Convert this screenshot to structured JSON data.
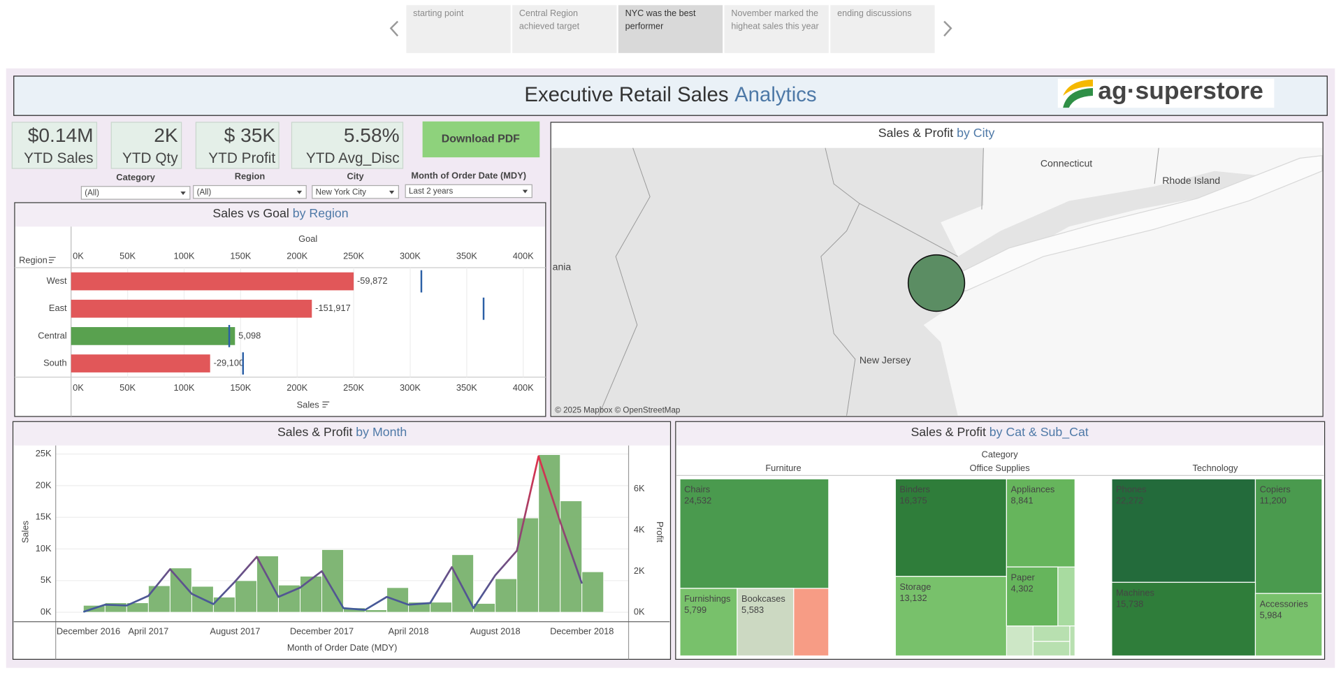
{
  "story": {
    "points": [
      "starting point",
      "Central Region achieved target",
      "NYC was the best performer",
      "November marked the higheat sales this year",
      "ending discussions"
    ],
    "selected": 2
  },
  "header": {
    "title": "Executive Retail Sales",
    "title_accent": "Analytics",
    "logo": "ag·superstore"
  },
  "kpis": [
    {
      "value": "$0.14M",
      "label": "YTD Sales"
    },
    {
      "value": "2K",
      "label": "YTD Qty"
    },
    {
      "value": "$ 35K",
      "label": "YTD Profit"
    },
    {
      "value": "5.58%",
      "label": "YTD Avg_Disc"
    }
  ],
  "button": "Download PDF",
  "filters": [
    {
      "label": "Category",
      "value": "(All)"
    },
    {
      "label": "Region",
      "value": "(All)"
    },
    {
      "label": "City",
      "value": "New York City"
    },
    {
      "label": "Month of Order Date (MDY)",
      "value": "Last 2 years"
    }
  ],
  "map": {
    "title": "Sales & Profit",
    "title_accent": "by City",
    "labels": [
      "Connecticut",
      "Rhode Island",
      "ania",
      "New Jersey"
    ],
    "attribution": "© 2025 Mapbox © OpenStreetMap"
  },
  "chart_data": [
    {
      "type": "hbar",
      "title": "Sales vs Goal",
      "title_accent": "by Region",
      "y_label": "Region",
      "x_label": "Sales",
      "x2_label": "Goal",
      "categories": [
        "West",
        "East",
        "Central",
        "South"
      ],
      "values": [
        250000,
        213000,
        145000,
        123000
      ],
      "colors": [
        "#e15759",
        "#e15759",
        "#59a14f",
        "#e15759"
      ],
      "goal": {
        "values": [
          309872,
          364917,
          139902,
          152100
        ],
        "color": "#2b5fa6"
      },
      "variance": {
        "values": [
          -59872,
          -151917,
          5098,
          -29100
        ],
        "value_labels": [
          "-59,872",
          "-151,917",
          "5,098",
          "-29,100"
        ]
      },
      "xlim": [
        0,
        410000
      ],
      "xticks": [
        {
          "value": 0,
          "label": "0K"
        },
        {
          "value": 50000,
          "label": "50K"
        },
        {
          "value": 100000,
          "label": "100K"
        },
        {
          "value": 150000,
          "label": "150K"
        },
        {
          "value": 200000,
          "label": "200K"
        },
        {
          "value": 250000,
          "label": "250K"
        },
        {
          "value": 300000,
          "label": "300K"
        },
        {
          "value": 350000,
          "label": "350K"
        },
        {
          "value": 400000,
          "label": "400K"
        }
      ],
      "grid": true
    },
    {
      "type": "combo",
      "title": "Sales & Profit",
      "title_accent": "by Month",
      "x_label": "Month of Order Date (MDY)",
      "y_label": "Sales",
      "y2_label": "Profit",
      "categories": [
        "December 2016",
        null,
        null,
        null,
        "April 2017",
        null,
        null,
        null,
        "August 2017",
        null,
        null,
        null,
        "December 2017",
        null,
        null,
        null,
        "April 2018",
        null,
        null,
        null,
        "August 2018",
        null,
        null,
        null,
        "December 2018"
      ],
      "series": [
        {
          "name": "Sales",
          "type": "bar",
          "color": "#7ab36e",
          "values": [
            null,
            1100,
            1500,
            1500,
            4200,
            7000,
            4100,
            2400,
            5000,
            8900,
            4300,
            5700,
            9900,
            700,
            400,
            3900,
            1600,
            1600,
            9100,
            1400,
            5300,
            14900,
            24900,
            17600,
            6400
          ]
        },
        {
          "name": "Profit",
          "type": "line",
          "axis": "y2",
          "colors": [
            "#3f5b9c",
            "#e0304a"
          ],
          "values": [
            null,
            20,
            370,
            330,
            800,
            2100,
            900,
            400,
            1500,
            2700,
            750,
            1200,
            2000,
            200,
            120,
            750,
            370,
            450,
            2200,
            200,
            1800,
            3000,
            7600,
            4400,
            1400
          ]
        }
      ],
      "ylim": [
        0,
        26200
      ],
      "yticks": [
        {
          "value": 0,
          "label": "0K"
        },
        {
          "value": 5000,
          "label": "5K"
        },
        {
          "value": 10000,
          "label": "10K"
        },
        {
          "value": 15000,
          "label": "15K"
        },
        {
          "value": 20000,
          "label": "20K"
        },
        {
          "value": 25000,
          "label": "25K"
        }
      ],
      "y2lim": [
        0,
        8080
      ],
      "y2ticks": [
        {
          "value": 0,
          "label": "0K"
        },
        {
          "value": 2000,
          "label": "2K"
        },
        {
          "value": 4000,
          "label": "4K"
        },
        {
          "value": 6000,
          "label": "6K"
        }
      ],
      "grid": true
    },
    {
      "type": "treemap",
      "title": "Sales & Profit",
      "title_accent": "by Cat & Sub_Cat",
      "group_label": "Category",
      "groups": [
        "Furniture",
        "Office Supplies",
        "Technology"
      ],
      "names": [
        "Chairs",
        "Furnishings",
        "Bookcases",
        "Binders",
        "Appliances",
        "Storage",
        "Paper",
        "Phones",
        "Copiers",
        "Machines",
        "Accessories"
      ],
      "values": [
        24532,
        5799,
        5583,
        16375,
        8841,
        13132,
        4302,
        22272,
        11200,
        15738,
        5984
      ],
      "value_labels": [
        "24,532",
        "5,799",
        "5,583",
        "16,375",
        "8,841",
        "13,132",
        "4,302",
        "22,272",
        "11,200",
        "15,738",
        "5,984"
      ],
      "colors": [
        "#4a9a4e",
        "#78c16b",
        "#ccd9c2",
        "#2f7d3a",
        "#66b55c",
        "#78c16b",
        "#66b55c",
        "#236b3b",
        "#4a9a4e",
        "#2f7d3a",
        "#78c16b"
      ]
    }
  ]
}
